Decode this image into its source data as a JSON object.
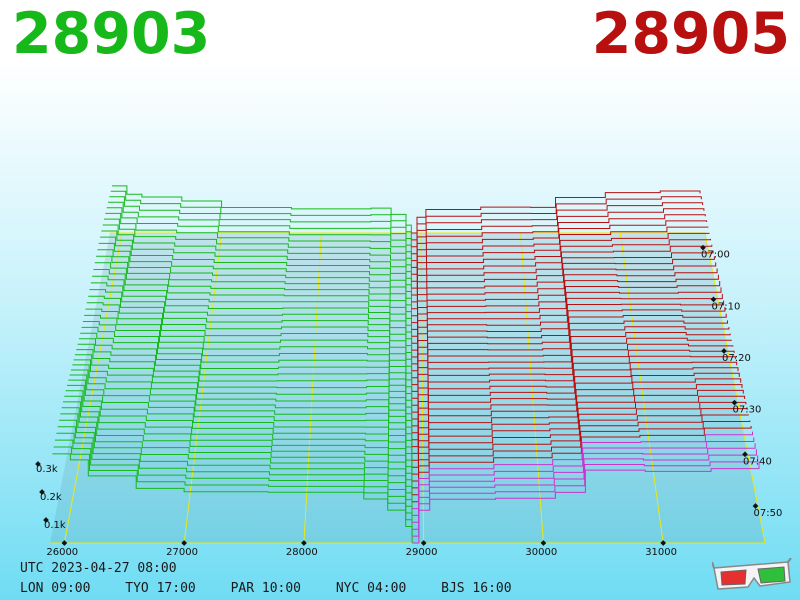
{
  "header": {
    "bid_price": "28903",
    "ask_price": "28905"
  },
  "footer": {
    "utc_label": "UTC 2023-04-27 08:00",
    "sessions": [
      {
        "label": "LON 09:00"
      },
      {
        "label": "TYO 17:00"
      },
      {
        "label": "PAR 10:00"
      },
      {
        "label": "NYC 04:00"
      },
      {
        "label": "BJS 16:00"
      }
    ]
  },
  "icons": {
    "corner_icon": "3d-glasses-icon"
  },
  "colors": {
    "bid": "#16b81a",
    "ask": "#b80f0f",
    "grid": "#e8e81a",
    "base": "#cc33cc"
  },
  "chart_data": {
    "type": "3d-depth",
    "x_axis": {
      "ticks": [
        "26000",
        "27000",
        "28000",
        "29000",
        "30000",
        "31000"
      ],
      "range": [
        25880,
        31850
      ]
    },
    "y_axis": {
      "ticks": [
        "0.1k",
        "0.2k",
        "0.3k"
      ],
      "max": 0.42
    },
    "time_axis": {
      "ticks": [
        "07:00",
        "07:10",
        "07:20",
        "07:30",
        "07:40",
        "07:50"
      ]
    },
    "bid_price": 28903,
    "ask_price": 28905,
    "snapshots": 46,
    "bid_depth": [
      {
        "price": 25900,
        "depth": 0.34
      },
      {
        "price": 26050,
        "depth": 0.3
      },
      {
        "price": 26200,
        "depth": 0.26
      },
      {
        "price": 26600,
        "depth": 0.22
      },
      {
        "price": 27000,
        "depth": 0.19
      },
      {
        "price": 27700,
        "depth": 0.185
      },
      {
        "price": 28500,
        "depth": 0.175
      },
      {
        "price": 28700,
        "depth": 0.13
      },
      {
        "price": 28850,
        "depth": 0.06
      },
      {
        "price": 28903,
        "depth": 0.0
      }
    ],
    "ask_depth": [
      {
        "price": 28905,
        "depth": 0.0
      },
      {
        "price": 28960,
        "depth": 0.12
      },
      {
        "price": 29050,
        "depth": 0.17
      },
      {
        "price": 29600,
        "depth": 0.18
      },
      {
        "price": 30100,
        "depth": 0.19
      },
      {
        "price": 30350,
        "depth": 0.27
      },
      {
        "price": 30850,
        "depth": 0.285
      },
      {
        "price": 31400,
        "depth": 0.295
      },
      {
        "price": 31800,
        "depth": 0.3
      }
    ]
  }
}
